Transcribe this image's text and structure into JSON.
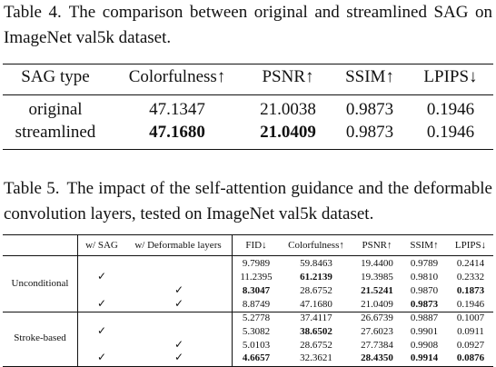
{
  "table4": {
    "label": "Table 4.",
    "caption": "The comparison between original and streamlined SAG on ImageNet val5k dataset.",
    "headers": [
      "SAG type",
      "Colorfulness↑",
      "PSNR↑",
      "SSIM↑",
      "LPIPS↓"
    ],
    "rows": [
      {
        "type": "original",
        "colorfulness": "47.1347",
        "psnr": "21.0038",
        "ssim": "0.9873",
        "lpips": "0.1946"
      },
      {
        "type": "streamlined",
        "colorfulness": "47.1680",
        "psnr": "21.0409",
        "ssim": "0.9873",
        "lpips": "0.1946"
      }
    ]
  },
  "table5": {
    "label": "Table 5.",
    "caption": "The impact of the self-attention guidance and the deformable convolution layers, tested on ImageNet val5k dataset.",
    "headers": [
      "w/ SAG",
      "w/ Deformable layers",
      "FID↓",
      "Colorfulness↑",
      "PSNR↑",
      "SSIM↑",
      "LPIPS↓"
    ],
    "check_mark": "✓",
    "groups": [
      {
        "name": "Unconditional",
        "rows": [
          {
            "sag": false,
            "deform": false,
            "fid": "9.7989",
            "colorfulness": "59.8463",
            "psnr": "19.4400",
            "ssim": "0.9789",
            "lpips": "0.2414"
          },
          {
            "sag": true,
            "deform": false,
            "fid": "11.2395",
            "colorfulness": "61.2139",
            "psnr": "19.3985",
            "ssim": "0.9810",
            "lpips": "0.2332"
          },
          {
            "sag": false,
            "deform": true,
            "fid": "8.3047",
            "colorfulness": "28.6752",
            "psnr": "21.5241",
            "ssim": "0.9870",
            "lpips": "0.1873"
          },
          {
            "sag": true,
            "deform": true,
            "fid": "8.8749",
            "colorfulness": "47.1680",
            "psnr": "21.0409",
            "ssim": "0.9873",
            "lpips": "0.1946"
          }
        ]
      },
      {
        "name": "Stroke-based",
        "rows": [
          {
            "sag": false,
            "deform": false,
            "fid": "5.2778",
            "colorfulness": "37.4117",
            "psnr": "26.6739",
            "ssim": "0.9887",
            "lpips": "0.1007"
          },
          {
            "sag": true,
            "deform": false,
            "fid": "5.3082",
            "colorfulness": "38.6502",
            "psnr": "27.6023",
            "ssim": "0.9901",
            "lpips": "0.0911"
          },
          {
            "sag": false,
            "deform": true,
            "fid": "5.0103",
            "colorfulness": "28.6752",
            "psnr": "27.7384",
            "ssim": "0.9908",
            "lpips": "0.0927"
          },
          {
            "sag": true,
            "deform": true,
            "fid": "4.6657",
            "colorfulness": "32.3621",
            "psnr": "28.4350",
            "ssim": "0.9914",
            "lpips": "0.0876"
          }
        ]
      }
    ]
  }
}
